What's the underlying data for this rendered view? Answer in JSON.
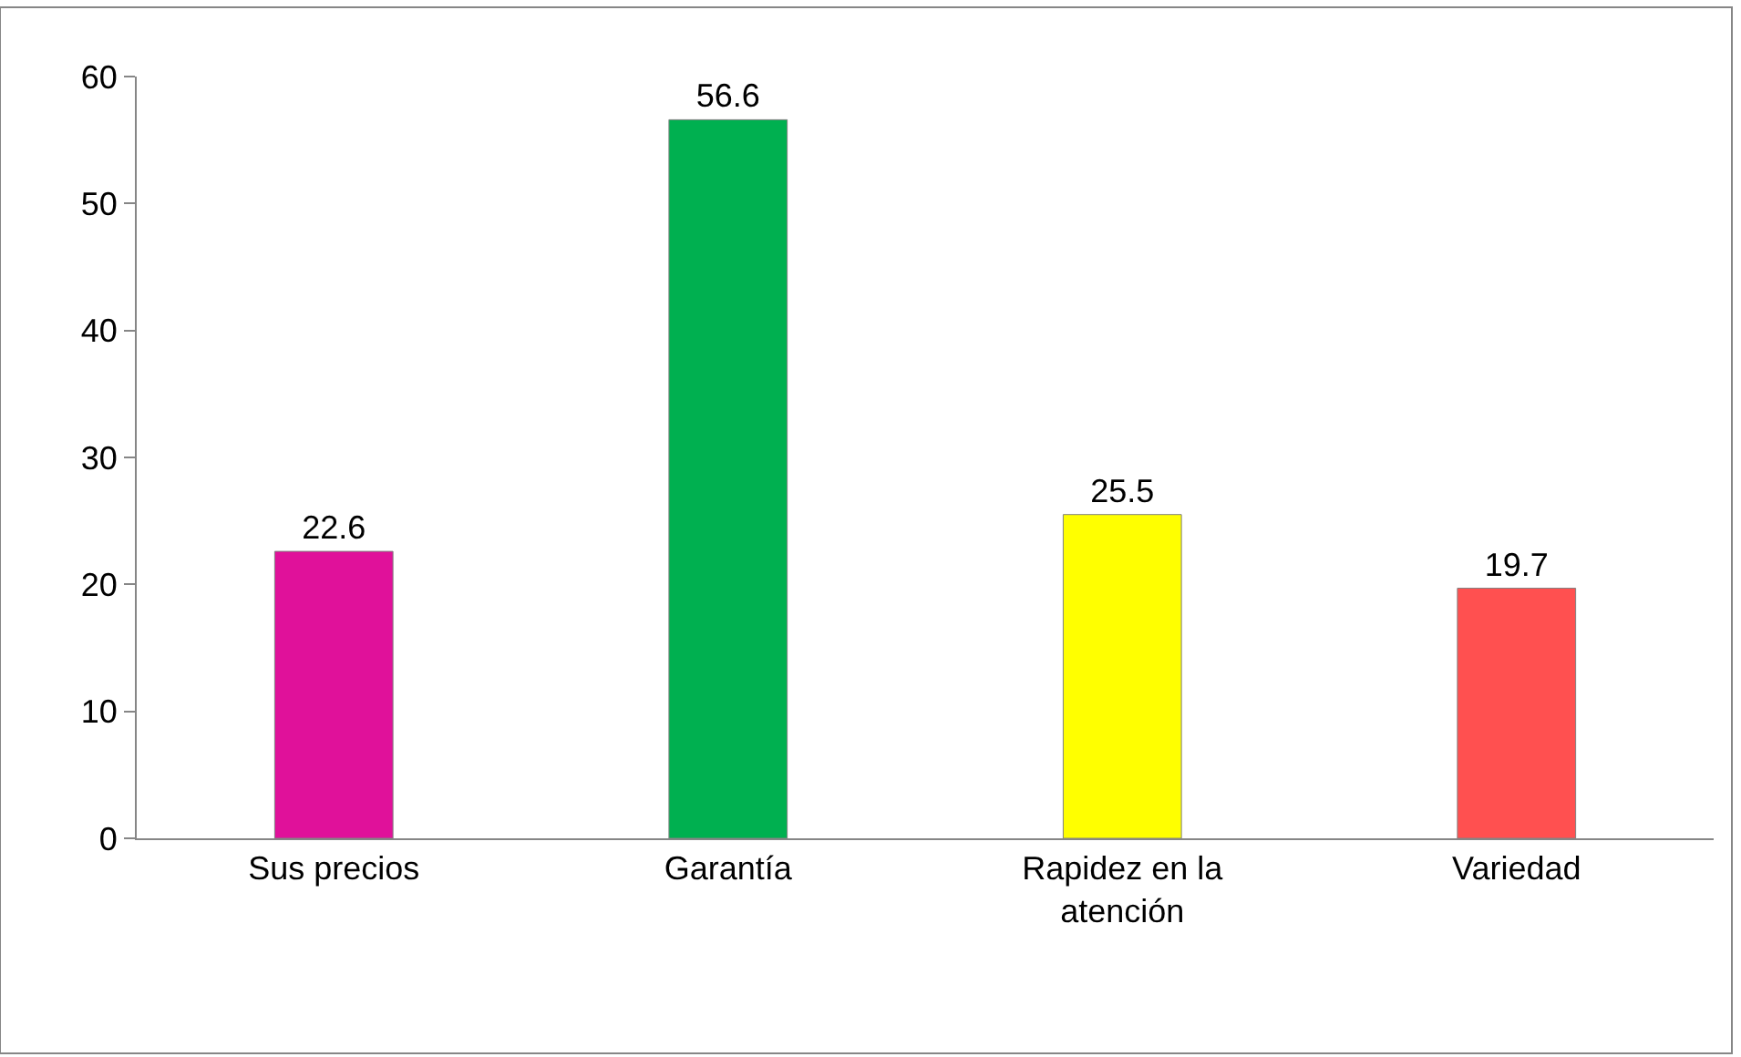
{
  "chart_data": {
    "type": "bar",
    "categories": [
      "Sus precios",
      "Garantía",
      "Rapidez en la atención",
      "Variedad"
    ],
    "values": [
      22.6,
      56.6,
      25.5,
      19.7
    ],
    "colors": [
      "#e0119a",
      "#00b050",
      "#ffff00",
      "#ff5050"
    ],
    "ylim": [
      0,
      60
    ],
    "yticks": [
      0,
      10,
      20,
      30,
      40,
      50,
      60
    ],
    "data_labels": true
  }
}
